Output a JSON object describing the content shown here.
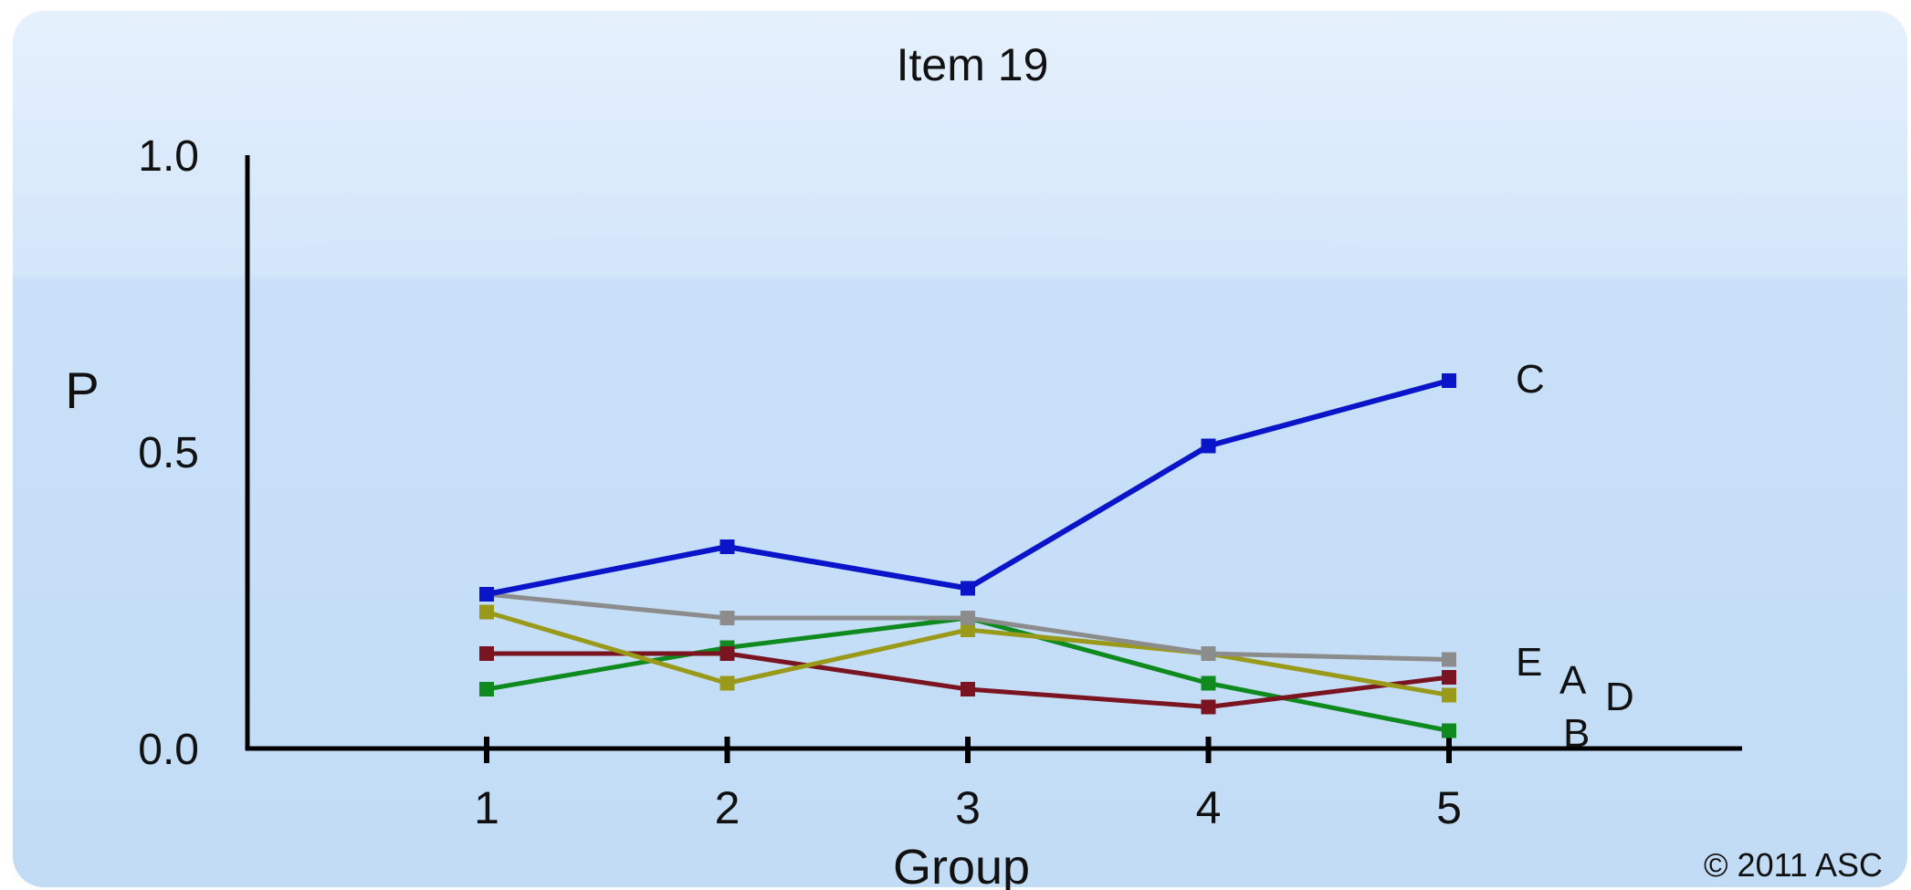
{
  "chart_data": {
    "type": "line",
    "title": "Item 19",
    "xlabel": "Group",
    "ylabel": "P",
    "categories": [
      "1",
      "2",
      "3",
      "4",
      "5"
    ],
    "yticks": [
      "0.0",
      "0.5",
      "1.0"
    ],
    "ylim": [
      0,
      1
    ],
    "grid": false,
    "legend": "inline labels at the right end of each line",
    "copyright": "© 2011 ASC",
    "series": [
      {
        "name": "C",
        "color": "#0a14c8",
        "values": [
          0.26,
          0.34,
          0.27,
          0.51,
          0.62
        ]
      },
      {
        "name": "E",
        "color": "#8c8c8c",
        "values": [
          0.26,
          0.22,
          0.22,
          0.16,
          0.15
        ]
      },
      {
        "name": "A",
        "color": "#9a9a1a",
        "values": [
          0.23,
          0.11,
          0.2,
          0.16,
          0.09
        ]
      },
      {
        "name": "D",
        "color": "#7a1420",
        "values": [
          0.16,
          0.16,
          0.1,
          0.07,
          0.12
        ]
      },
      {
        "name": "B",
        "color": "#0e8a1e",
        "values": [
          0.1,
          0.17,
          0.22,
          0.11,
          0.03
        ]
      }
    ]
  }
}
